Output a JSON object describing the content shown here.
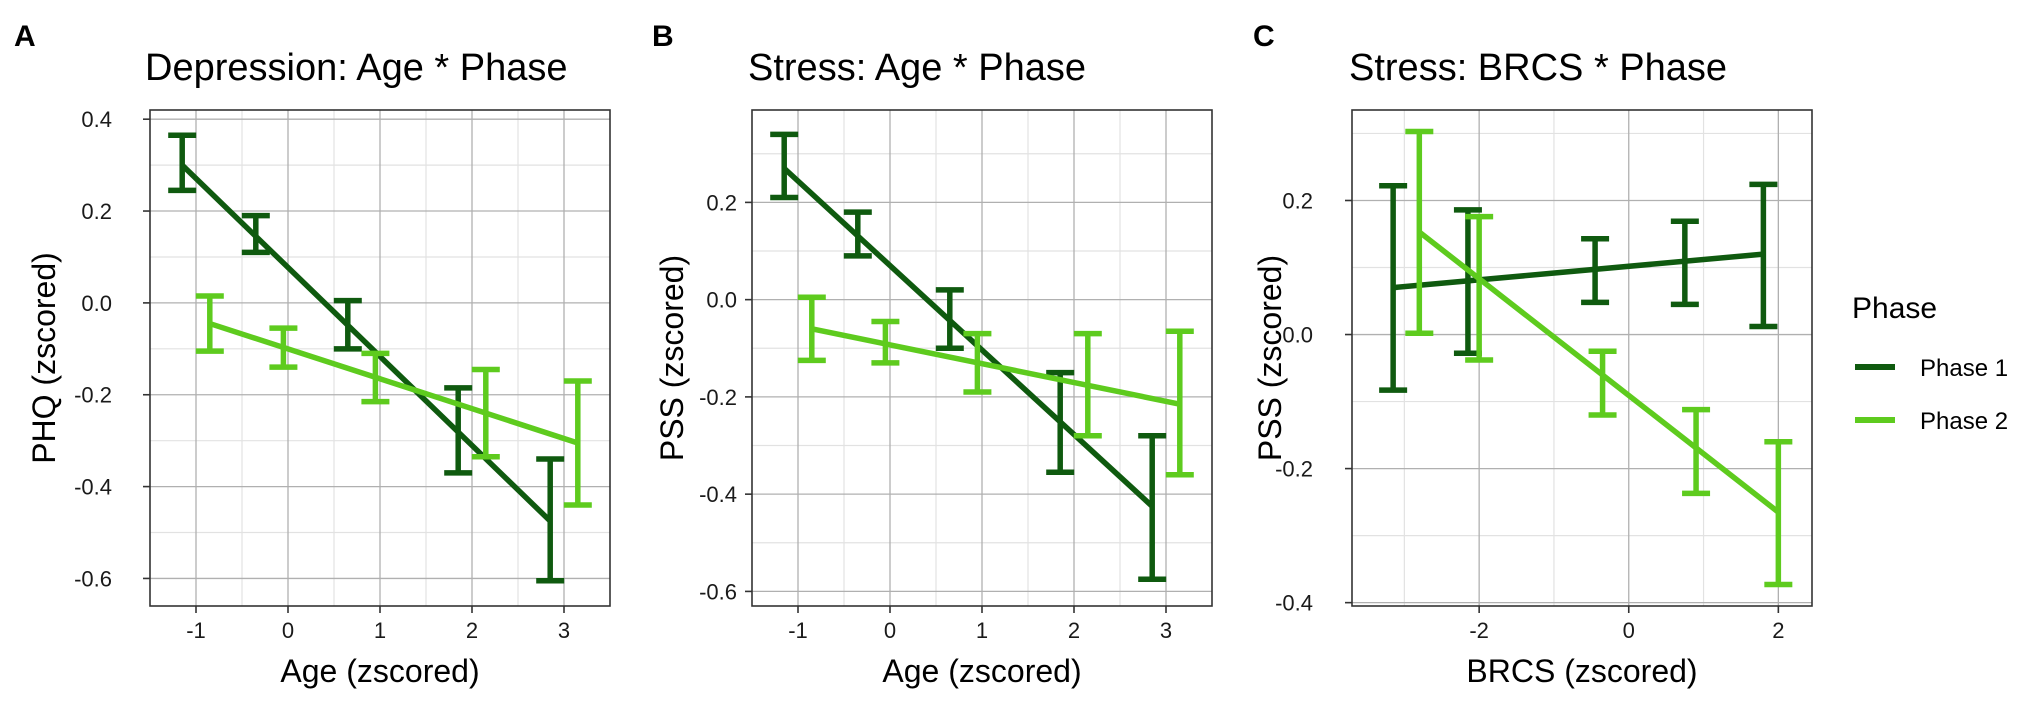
{
  "colors": {
    "phase1": "#0f5a0f",
    "phase2": "#5ecb1e",
    "grid_major": "#b0b0b0",
    "grid_minor": "#e2e2e2",
    "border": "#333333"
  },
  "legend": {
    "title": "Phase",
    "items": [
      {
        "label": "Phase 1",
        "color": "#0f5a0f"
      },
      {
        "label": "Phase 2",
        "color": "#5ecb1e"
      }
    ]
  },
  "chart_data": [
    {
      "panel_letter": "A",
      "type": "line",
      "title": "Depression: Age * Phase",
      "xlabel": "Age (zscored)",
      "ylabel": "PHQ (zscored)",
      "xlim": [
        -1.5,
        3.5
      ],
      "ylim": [
        -0.66,
        0.42
      ],
      "x_ticks": [
        -1,
        0,
        1,
        2,
        3
      ],
      "x_tick_labels": [
        "-1",
        "0",
        "1",
        "2",
        "3"
      ],
      "y_ticks": [
        -0.6,
        -0.4,
        -0.2,
        0.0,
        0.2,
        0.4
      ],
      "y_tick_labels": [
        "-0.6",
        "-0.4",
        "-0.2",
        "0.0",
        "0.2",
        "0.4"
      ],
      "grid": true,
      "series": [
        {
          "name": "Phase 1",
          "line": {
            "x": [
              -1.15,
              2.85
            ],
            "y": [
              0.3,
              -0.475
            ]
          },
          "points": [
            {
              "x": -1.15,
              "y": 0.305,
              "lo": 0.245,
              "hi": 0.365
            },
            {
              "x": -0.35,
              "y": 0.15,
              "lo": 0.11,
              "hi": 0.19
            },
            {
              "x": 0.65,
              "y": -0.045,
              "lo": -0.1,
              "hi": 0.005
            },
            {
              "x": 1.85,
              "y": -0.28,
              "lo": -0.37,
              "hi": -0.185
            },
            {
              "x": 2.85,
              "y": -0.475,
              "lo": -0.605,
              "hi": -0.34
            }
          ]
        },
        {
          "name": "Phase 2",
          "line": {
            "x": [
              -0.85,
              3.15
            ],
            "y": [
              -0.045,
              -0.305
            ]
          },
          "points": [
            {
              "x": -0.85,
              "y": -0.045,
              "lo": -0.105,
              "hi": 0.015
            },
            {
              "x": -0.05,
              "y": -0.095,
              "lo": -0.14,
              "hi": -0.055
            },
            {
              "x": 0.95,
              "y": -0.16,
              "lo": -0.215,
              "hi": -0.11
            },
            {
              "x": 2.15,
              "y": -0.24,
              "lo": -0.335,
              "hi": -0.145
            },
            {
              "x": 3.15,
              "y": -0.305,
              "lo": -0.44,
              "hi": -0.17
            }
          ]
        }
      ]
    },
    {
      "panel_letter": "B",
      "type": "line",
      "title": "Stress: Age * Phase",
      "xlabel": "Age (zscored)",
      "ylabel": "PSS (zscored)",
      "xlim": [
        -1.5,
        3.5
      ],
      "ylim": [
        -0.63,
        0.39
      ],
      "x_ticks": [
        -1,
        0,
        1,
        2,
        3
      ],
      "x_tick_labels": [
        "-1",
        "0",
        "1",
        "2",
        "3"
      ],
      "y_ticks": [
        -0.6,
        -0.4,
        -0.2,
        0.0,
        0.2
      ],
      "y_tick_labels": [
        "-0.6",
        "-0.4",
        "-0.2",
        "0.0",
        "0.2"
      ],
      "grid": true,
      "series": [
        {
          "name": "Phase 1",
          "line": {
            "x": [
              -1.15,
              2.85
            ],
            "y": [
              0.27,
              -0.425
            ]
          },
          "points": [
            {
              "x": -1.15,
              "y": 0.275,
              "lo": 0.21,
              "hi": 0.34
            },
            {
              "x": -0.35,
              "y": 0.135,
              "lo": 0.09,
              "hi": 0.18
            },
            {
              "x": 0.65,
              "y": -0.04,
              "lo": -0.1,
              "hi": 0.02
            },
            {
              "x": 1.85,
              "y": -0.25,
              "lo": -0.355,
              "hi": -0.15
            },
            {
              "x": 2.85,
              "y": -0.425,
              "lo": -0.575,
              "hi": -0.28
            }
          ]
        },
        {
          "name": "Phase 2",
          "line": {
            "x": [
              -0.85,
              3.15
            ],
            "y": [
              -0.06,
              -0.215
            ]
          },
          "points": [
            {
              "x": -0.85,
              "y": -0.06,
              "lo": -0.125,
              "hi": 0.005
            },
            {
              "x": -0.05,
              "y": -0.09,
              "lo": -0.13,
              "hi": -0.045
            },
            {
              "x": 0.95,
              "y": -0.13,
              "lo": -0.19,
              "hi": -0.07
            },
            {
              "x": 2.15,
              "y": -0.175,
              "lo": -0.28,
              "hi": -0.07
            },
            {
              "x": 3.15,
              "y": -0.215,
              "lo": -0.36,
              "hi": -0.065
            }
          ]
        }
      ]
    },
    {
      "panel_letter": "C",
      "type": "line",
      "title": "Stress: BRCS * Phase",
      "xlabel": "BRCS (zscored)",
      "ylabel": "PSS (zscored)",
      "xlim": [
        -3.7,
        2.45
      ],
      "ylim": [
        -0.405,
        0.335
      ],
      "x_ticks": [
        -2,
        0,
        2
      ],
      "x_tick_labels": [
        "-2",
        "0",
        "2"
      ],
      "y_ticks": [
        -0.4,
        -0.2,
        0.0,
        0.2
      ],
      "y_tick_labels": [
        "-0.4",
        "-0.2",
        "0.0",
        "0.2"
      ],
      "grid": true,
      "series": [
        {
          "name": "Phase 1",
          "line": {
            "x": [
              -3.15,
              1.8
            ],
            "y": [
              0.07,
              0.12
            ]
          },
          "points": [
            {
              "x": -3.15,
              "y": 0.07,
              "lo": -0.083,
              "hi": 0.222
            },
            {
              "x": -2.15,
              "y": 0.08,
              "lo": -0.028,
              "hi": 0.186
            },
            {
              "x": -0.45,
              "y": 0.095,
              "lo": 0.048,
              "hi": 0.143
            },
            {
              "x": 0.75,
              "y": 0.108,
              "lo": 0.045,
              "hi": 0.169
            },
            {
              "x": 1.8,
              "y": 0.12,
              "lo": 0.012,
              "hi": 0.224
            }
          ]
        },
        {
          "name": "Phase 2",
          "line": {
            "x": [
              -2.8,
              2.0
            ],
            "y": [
              0.153,
              -0.265
            ]
          },
          "points": [
            {
              "x": -2.8,
              "y": 0.153,
              "lo": 0.002,
              "hi": 0.303
            },
            {
              "x": -2.0,
              "y": 0.07,
              "lo": -0.038,
              "hi": 0.176
            },
            {
              "x": -0.35,
              "y": -0.07,
              "lo": -0.12,
              "hi": -0.025
            },
            {
              "x": 0.9,
              "y": -0.172,
              "lo": -0.237,
              "hi": -0.112
            },
            {
              "x": 2.0,
              "y": -0.265,
              "lo": -0.373,
              "hi": -0.16
            }
          ]
        }
      ]
    }
  ]
}
